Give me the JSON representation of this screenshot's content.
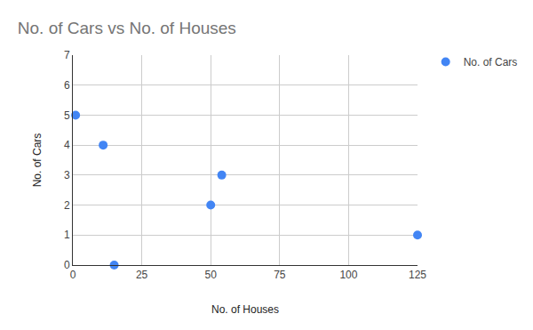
{
  "chart_data": {
    "type": "scatter",
    "title": "No. of Cars vs No. of Houses",
    "x_label": "No. of Houses",
    "y_label": "No. of Cars",
    "series": [
      {
        "name": "No. of Cars",
        "color": "#4285f4",
        "marker": "circle",
        "x": [
          1,
          11,
          15,
          50,
          54,
          125
        ],
        "values": [
          5,
          4,
          0,
          2,
          3,
          1
        ]
      }
    ],
    "xlim": [
      0,
      125
    ],
    "xticks": [
      0,
      25,
      50,
      75,
      100,
      125
    ],
    "ylim": [
      0,
      7
    ],
    "yticks": [
      0,
      1,
      2,
      3,
      4,
      5,
      6,
      7
    ],
    "grid": true,
    "legend": "top-right"
  }
}
